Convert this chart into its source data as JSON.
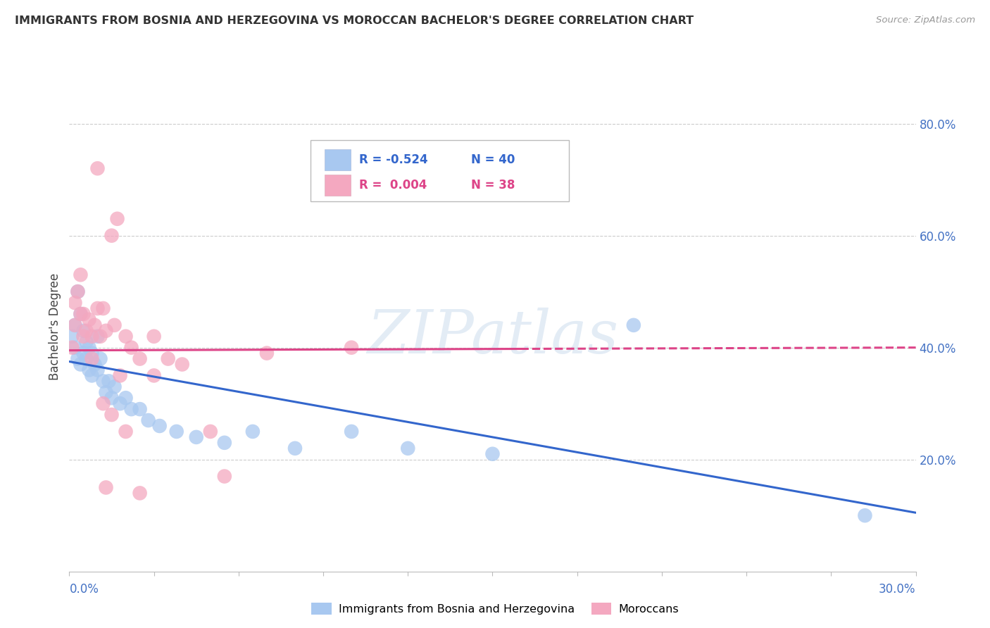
{
  "title": "IMMIGRANTS FROM BOSNIA AND HERZEGOVINA VS MOROCCAN BACHELOR'S DEGREE CORRELATION CHART",
  "source": "Source: ZipAtlas.com",
  "ylabel": "Bachelor's Degree",
  "blue_R": -0.524,
  "blue_N": 40,
  "pink_R": 0.004,
  "pink_N": 38,
  "blue_color": "#A8C8F0",
  "pink_color": "#F4A8C0",
  "blue_line_color": "#3366CC",
  "pink_line_color": "#DD4488",
  "watermark": "ZIPatlas",
  "legend_label_blue": "Immigrants from Bosnia and Herzegovina",
  "legend_label_pink": "Moroccans",
  "xmin": 0.0,
  "xmax": 0.3,
  "ymin": 0.0,
  "ymax": 0.875,
  "blue_line_x0": 0.0,
  "blue_line_y0": 0.375,
  "blue_line_x1": 0.3,
  "blue_line_y1": 0.105,
  "pink_line_x0": 0.0,
  "pink_line_y0": 0.395,
  "pink_line_x1": 0.3,
  "pink_line_y1": 0.4,
  "blue_scatter_x": [
    0.001,
    0.002,
    0.002,
    0.003,
    0.003,
    0.004,
    0.004,
    0.005,
    0.005,
    0.006,
    0.006,
    0.007,
    0.007,
    0.008,
    0.008,
    0.009,
    0.01,
    0.01,
    0.011,
    0.012,
    0.013,
    0.014,
    0.015,
    0.016,
    0.018,
    0.02,
    0.022,
    0.025,
    0.028,
    0.032,
    0.038,
    0.045,
    0.055,
    0.065,
    0.08,
    0.1,
    0.12,
    0.15,
    0.2,
    0.282
  ],
  "blue_scatter_y": [
    0.42,
    0.44,
    0.4,
    0.5,
    0.38,
    0.46,
    0.37,
    0.43,
    0.39,
    0.41,
    0.38,
    0.4,
    0.36,
    0.39,
    0.35,
    0.37,
    0.42,
    0.36,
    0.38,
    0.34,
    0.32,
    0.34,
    0.31,
    0.33,
    0.3,
    0.31,
    0.29,
    0.29,
    0.27,
    0.26,
    0.25,
    0.24,
    0.23,
    0.25,
    0.22,
    0.25,
    0.22,
    0.21,
    0.44,
    0.1
  ],
  "pink_scatter_x": [
    0.001,
    0.002,
    0.002,
    0.003,
    0.004,
    0.004,
    0.005,
    0.005,
    0.006,
    0.007,
    0.008,
    0.008,
    0.009,
    0.01,
    0.011,
    0.012,
    0.013,
    0.015,
    0.016,
    0.018,
    0.02,
    0.022,
    0.025,
    0.03,
    0.035,
    0.04,
    0.055,
    0.07,
    0.01,
    0.012,
    0.015,
    0.02,
    0.025,
    0.03,
    0.05,
    0.1,
    0.013,
    0.017
  ],
  "pink_scatter_y": [
    0.4,
    0.44,
    0.48,
    0.5,
    0.46,
    0.53,
    0.42,
    0.46,
    0.43,
    0.45,
    0.38,
    0.42,
    0.44,
    0.47,
    0.42,
    0.47,
    0.43,
    0.6,
    0.44,
    0.35,
    0.42,
    0.4,
    0.38,
    0.42,
    0.38,
    0.37,
    0.17,
    0.39,
    0.72,
    0.3,
    0.28,
    0.25,
    0.14,
    0.35,
    0.25,
    0.4,
    0.15,
    0.63
  ]
}
